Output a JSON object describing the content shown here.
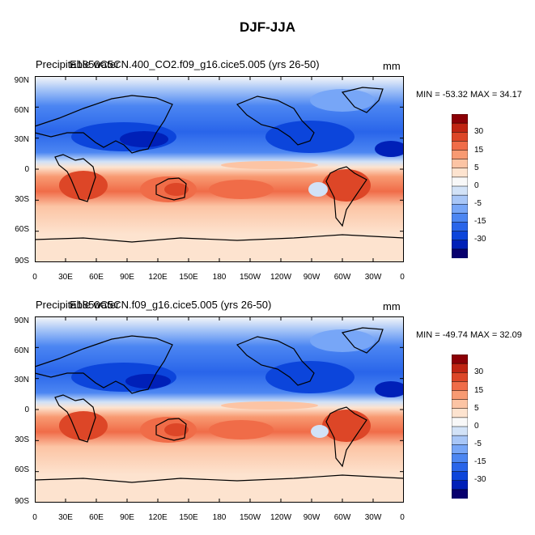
{
  "figure": {
    "title": "DJF-JJA",
    "units": "mm"
  },
  "chart_data": [
    {
      "type": "heatmap",
      "title_left": "Precipitable water",
      "title_right": "E1850C5CN.400_CO2.f09_g16.cice5.005 (yrs 26-50)",
      "units": "mm",
      "min_max_text": "MIN = -53.32 MAX =  34.17",
      "min": -53.32,
      "max": 34.17,
      "y_ticks": [
        "90N",
        "60N",
        "30N",
        "0",
        "30S",
        "60S",
        "90S"
      ],
      "x_ticks": [
        "0",
        "30E",
        "60E",
        "90E",
        "120E",
        "150E",
        "180",
        "150W",
        "120W",
        "90W",
        "60W",
        "30W",
        "0"
      ],
      "colorbar_labels": [
        "30",
        "15",
        "5",
        "0",
        "-5",
        "-15",
        "-30"
      ]
    },
    {
      "type": "heatmap",
      "title_left": "Precipitable water",
      "title_right": "E1850C5CN.f09_g16.cice5.005 (yrs 26-50)",
      "units": "mm",
      "min_max_text": "MIN = -49.74 MAX =  32.09",
      "min": -49.74,
      "max": 32.09,
      "y_ticks": [
        "90N",
        "60N",
        "30N",
        "0",
        "30S",
        "60S",
        "90S"
      ],
      "x_ticks": [
        "0",
        "30E",
        "60E",
        "90E",
        "120E",
        "150E",
        "180",
        "150W",
        "120W",
        "90W",
        "60W",
        "30W",
        "0"
      ],
      "colorbar_labels": [
        "30",
        "15",
        "5",
        "0",
        "-5",
        "-15",
        "-30"
      ]
    }
  ],
  "colors": [
    "#08006f",
    "#0020b8",
    "#0c45db",
    "#2965ea",
    "#4c86f2",
    "#77a6f7",
    "#a8c6f7",
    "#d2e2f7",
    "#f8f8f8",
    "#fde3cf",
    "#fcc4a4",
    "#f89a72",
    "#f06c48",
    "#dd4627",
    "#c02412",
    "#8c0006"
  ]
}
